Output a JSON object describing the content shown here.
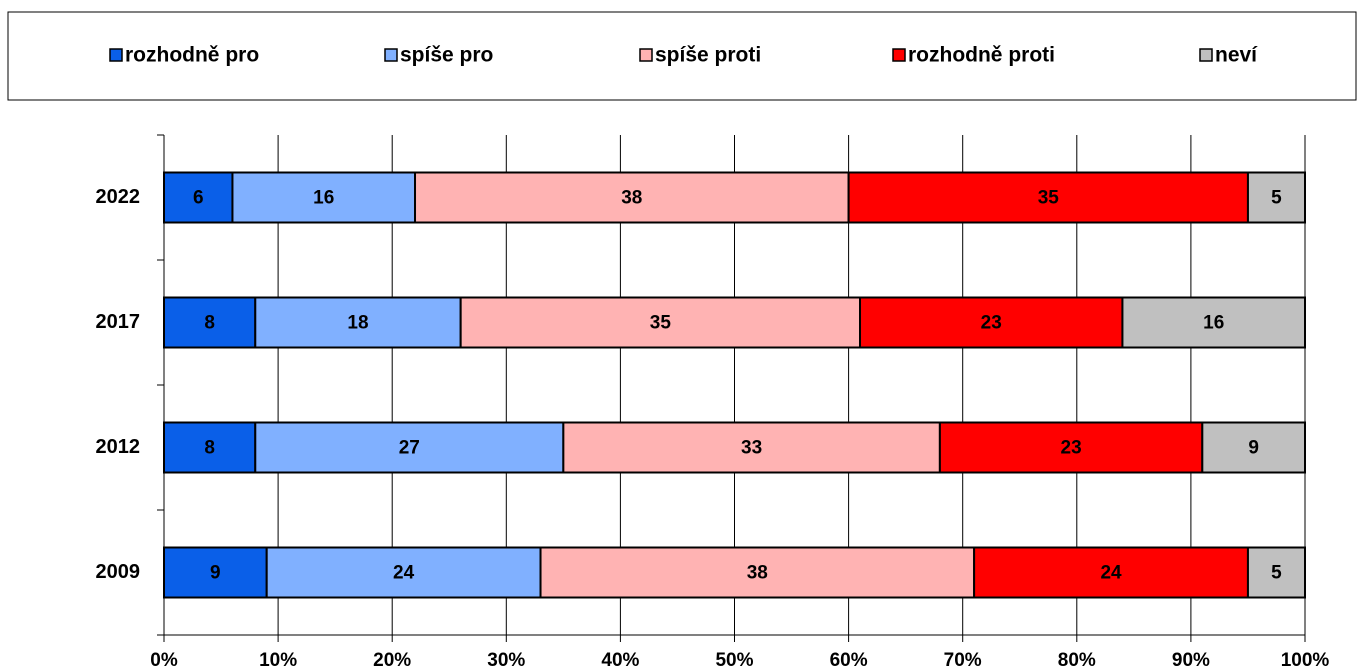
{
  "chart_data": {
    "type": "stacked-bar-horizontal",
    "categories": [
      "2022",
      "2017",
      "2012",
      "2009"
    ],
    "series": [
      {
        "name": "rozhodně pro",
        "color": "#0a5fe8",
        "values": [
          6,
          8,
          8,
          9
        ]
      },
      {
        "name": "spíše pro",
        "color": "#80b0ff",
        "values": [
          16,
          18,
          27,
          24
        ]
      },
      {
        "name": "spíše proti",
        "color": "#ffb3b3",
        "values": [
          38,
          35,
          33,
          38
        ]
      },
      {
        "name": "rozhodně proti",
        "color": "#ff0000",
        "values": [
          35,
          23,
          23,
          24
        ]
      },
      {
        "name": "neví",
        "color": "#c0c0c0",
        "values": [
          5,
          16,
          9,
          5
        ]
      }
    ],
    "xlim": [
      0,
      100
    ],
    "xticks": [
      {
        "value": 0,
        "label": "0%"
      },
      {
        "value": 10,
        "label": "10%"
      },
      {
        "value": 20,
        "label": "20%"
      },
      {
        "value": 30,
        "label": "30%"
      },
      {
        "value": 40,
        "label": "40%"
      },
      {
        "value": 50,
        "label": "50%"
      },
      {
        "value": 60,
        "label": "60%"
      },
      {
        "value": 70,
        "label": "70%"
      },
      {
        "value": 80,
        "label": "80%"
      },
      {
        "value": 90,
        "label": "90%"
      },
      {
        "value": 100,
        "label": "100%"
      }
    ],
    "grid": true,
    "legend": "top"
  }
}
